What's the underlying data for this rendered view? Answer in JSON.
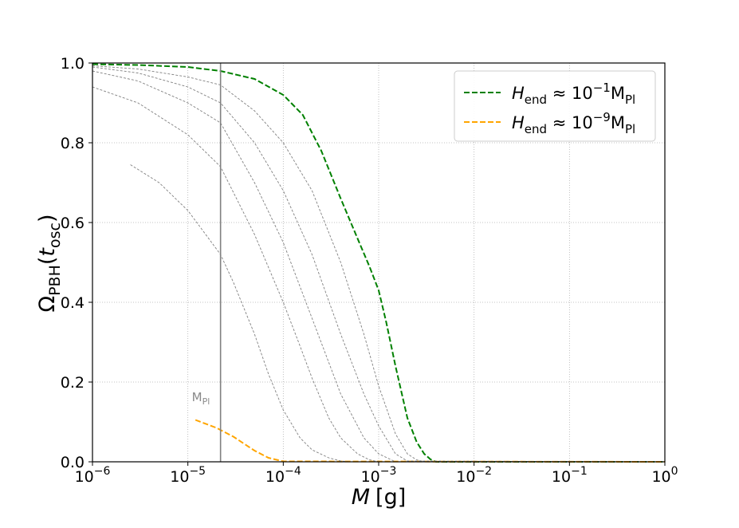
{
  "chart_data": {
    "type": "line",
    "xscale": "log",
    "xlim": [
      1e-06,
      1
    ],
    "ylim": [
      0,
      1.0
    ],
    "x_ticks": [
      {
        "base": "10",
        "exp": "−6"
      },
      {
        "base": "10",
        "exp": "−5"
      },
      {
        "base": "10",
        "exp": "−4"
      },
      {
        "base": "10",
        "exp": "−3"
      },
      {
        "base": "10",
        "exp": "−2"
      },
      {
        "base": "10",
        "exp": "−1"
      },
      {
        "base": "10",
        "exp": "0"
      }
    ],
    "y_ticks": [
      "0.0",
      "0.2",
      "0.4",
      "0.6",
      "0.8",
      "1.0"
    ],
    "xlabel": {
      "symbol": "M",
      "unit": "[g]"
    },
    "ylabel": {
      "symbol": "Ω",
      "sub": "PBH",
      "arg": "t",
      "arg_sub": "osc"
    },
    "grid": true,
    "legend_position": "top-right",
    "legend": [
      {
        "prefix": "H",
        "sub": "end",
        "middle": " ≈ 10",
        "exp": "−1",
        "unit": "M",
        "unit_sub": "Pl",
        "color": "#008000"
      },
      {
        "prefix": "H",
        "sub": "end",
        "middle": " ≈ 10",
        "exp": "−9",
        "unit": "M",
        "unit_sub": "Pl",
        "color": "#FFA500"
      }
    ],
    "vline": {
      "x": 2.2e-05,
      "color": "#808080"
    },
    "vline_label": {
      "text": "M",
      "sub": "Pl"
    },
    "series": [
      {
        "name": "",
        "color": "#008000",
        "dashed": true,
        "width": 2,
        "x": [
          1e-06,
          3e-06,
          1e-05,
          2.2e-05,
          5e-05,
          0.0001,
          0.00016,
          0.00025,
          0.0004,
          0.0006,
          0.0008,
          0.001,
          0.0012,
          0.0015,
          0.002,
          0.0025,
          0.003,
          0.0035,
          0.004,
          1
        ],
        "y": [
          0.997,
          0.995,
          0.99,
          0.98,
          0.96,
          0.92,
          0.87,
          0.78,
          0.66,
          0.56,
          0.49,
          0.43,
          0.35,
          0.24,
          0.11,
          0.05,
          0.02,
          0.006,
          0.0,
          0.0
        ]
      },
      {
        "name": "",
        "color": "#FFA500",
        "dashed": true,
        "width": 2,
        "x": [
          1.2e-05,
          2e-05,
          3e-05,
          5e-05,
          7e-05,
          0.0001,
          1
        ],
        "y": [
          0.105,
          0.085,
          0.063,
          0.028,
          0.01,
          0.001,
          0.0
        ]
      },
      {
        "name": "",
        "color": "#808080",
        "dashed": true,
        "width": 0.9,
        "x": [
          1e-06,
          3e-06,
          1e-05,
          2.2e-05,
          5e-05,
          0.0001,
          0.0002,
          0.0004,
          0.0007,
          0.001,
          0.0015,
          0.002,
          0.0025,
          0.003,
          1
        ],
        "y": [
          0.993,
          0.985,
          0.965,
          0.945,
          0.88,
          0.8,
          0.68,
          0.5,
          0.32,
          0.19,
          0.07,
          0.02,
          0.005,
          0.0,
          0.0
        ]
      },
      {
        "name": "",
        "color": "#808080",
        "dashed": true,
        "width": 0.9,
        "x": [
          1e-06,
          3e-06,
          1e-05,
          2.2e-05,
          5e-05,
          0.0001,
          0.0002,
          0.0004,
          0.0007,
          0.001,
          0.0015,
          0.002,
          1
        ],
        "y": [
          0.99,
          0.975,
          0.94,
          0.9,
          0.8,
          0.68,
          0.52,
          0.32,
          0.17,
          0.09,
          0.02,
          0.002,
          0.0
        ]
      },
      {
        "name": "",
        "color": "#808080",
        "dashed": true,
        "width": 0.9,
        "x": [
          1e-06,
          3e-06,
          1e-05,
          2.2e-05,
          5e-05,
          0.0001,
          0.0002,
          0.0004,
          0.0007,
          0.001,
          0.0015,
          1
        ],
        "y": [
          0.98,
          0.955,
          0.9,
          0.85,
          0.7,
          0.55,
          0.36,
          0.17,
          0.06,
          0.02,
          0.0,
          0.0
        ]
      },
      {
        "name": "",
        "color": "#808080",
        "dashed": true,
        "width": 0.9,
        "x": [
          1e-06,
          3e-06,
          1e-05,
          2.2e-05,
          5e-05,
          0.0001,
          0.00015,
          0.0002,
          0.0003,
          0.0004,
          0.0006,
          0.0008,
          0.001,
          1
        ],
        "y": [
          0.94,
          0.9,
          0.82,
          0.74,
          0.57,
          0.4,
          0.29,
          0.21,
          0.11,
          0.06,
          0.02,
          0.005,
          0.0,
          0.0
        ]
      },
      {
        "name": "",
        "color": "#808080",
        "dashed": true,
        "width": 0.9,
        "x": [
          2.5e-06,
          5e-06,
          1e-05,
          2.2e-05,
          3e-05,
          5e-05,
          7e-05,
          0.0001,
          0.00015,
          0.0002,
          0.0003,
          0.0004,
          0.0005,
          1
        ],
        "y": [
          0.745,
          0.7,
          0.63,
          0.52,
          0.45,
          0.32,
          0.22,
          0.13,
          0.06,
          0.03,
          0.01,
          0.002,
          0.0,
          0.0
        ]
      }
    ]
  }
}
